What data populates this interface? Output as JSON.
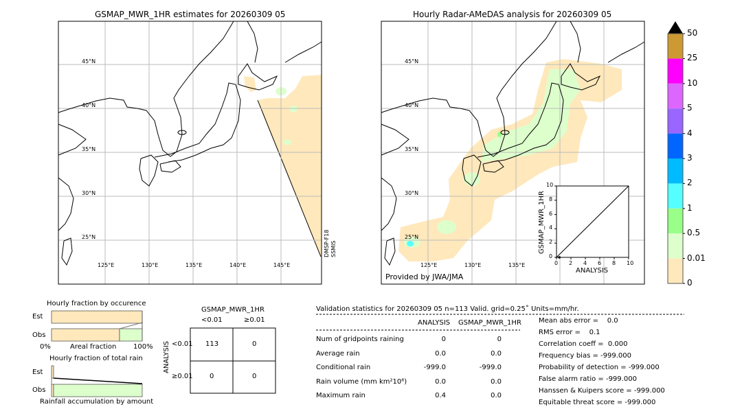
{
  "left_map": {
    "title": "GSMAP_MWR_1HR estimates for 20260309 05",
    "lat_labels": [
      "45°N",
      "40°N",
      "35°N",
      "30°N",
      "25°N"
    ],
    "lon_labels": [
      "125°E",
      "130°E",
      "135°E",
      "140°E",
      "145°E"
    ],
    "satellite_label_1": "DMSP-F18",
    "satellite_label_2": "SSMIS"
  },
  "right_map": {
    "title": "Hourly Radar-AMeDAS analysis for 20260309 05",
    "lat_labels": [
      "45°N",
      "40°N",
      "35°N",
      "30°N",
      "25°N"
    ],
    "lon_labels": [
      "125°E",
      "130°E",
      "135°E"
    ],
    "credit": "Provided by JWA/JMA"
  },
  "colorbar": {
    "labels": [
      "50",
      "25",
      "10",
      "5",
      "4",
      "3",
      "2",
      "1",
      "0.5",
      "0.01",
      "0"
    ],
    "colors": [
      "#cc9933",
      "#ff00ff",
      "#dd66ff",
      "#9966ff",
      "#0066ff",
      "#00bbff",
      "#55ffff",
      "#99ff88",
      "#ddffcc",
      "#ffe8bb"
    ],
    "extend_color": "#000000"
  },
  "chart_data": [
    {
      "type": "scatter",
      "xlabel": "ANALYSIS",
      "ylabel": "GSMAP_MWR_1HR",
      "xlim": [
        0,
        10
      ],
      "ylim": [
        0,
        10
      ],
      "x_ticks": [
        "0",
        "2",
        "4",
        "6",
        "8",
        "10"
      ],
      "y_ticks": [
        "0",
        "2",
        "4",
        "6",
        "8",
        "10"
      ],
      "points": [
        [
          0.4,
          0.0
        ]
      ],
      "reference_line": "y=x"
    },
    {
      "type": "bar",
      "title": "Hourly fraction by occurence",
      "xlabel": "Areal fraction",
      "x_tick_left": "0%",
      "x_tick_right": "100%",
      "categories": [
        "Est",
        "Obs"
      ],
      "series": [
        {
          "values": [
            1.0,
            0.75
          ],
          "color": "#ffe8bb"
        },
        {
          "values": [
            0.0,
            0.25
          ],
          "color": "#ddffcc"
        }
      ]
    },
    {
      "type": "bar",
      "title": "Hourly fraction of total rain",
      "xlabel": "Rainfall accumulation by amount",
      "categories": [
        "Est",
        "Obs"
      ],
      "series": [
        {
          "values": [
            0.02,
            0.02
          ],
          "color": "#ffe8bb"
        },
        {
          "values": [
            0.0,
            0.98
          ],
          "color": "#ddffcc"
        }
      ]
    }
  ],
  "contingency": {
    "title": "GSMAP_MWR_1HR",
    "col_headers": [
      "<0.01",
      "≥0.01"
    ],
    "row_label": "ANALYSIS",
    "row_headers": [
      "<0.01",
      "≥0.01"
    ],
    "cells": [
      [
        "113",
        "0"
      ],
      [
        "0",
        "0"
      ]
    ]
  },
  "validation": {
    "header": "Validation statistics for 20260309 05  n=113 Valid. grid=0.25˚ Units=mm/hr.",
    "col_analysis": "ANALYSIS",
    "col_gsmap": "GSMAP_MWR_1HR",
    "rows": [
      {
        "label": "Num of gridpoints raining",
        "analysis": "0",
        "gsmap": "0"
      },
      {
        "label": "Average rain",
        "analysis": "0.0",
        "gsmap": "0.0"
      },
      {
        "label": "Conditional rain",
        "analysis": "-999.0",
        "gsmap": "-999.0"
      },
      {
        "label": "Rain volume (mm km²10⁶)",
        "analysis": "0.0",
        "gsmap": "0.0"
      },
      {
        "label": "Maximum rain",
        "analysis": "0.4",
        "gsmap": "0.0"
      }
    ],
    "scores": [
      "Mean abs error =    0.0",
      "RMS error =    0.1",
      "Correlation coeff =  0.000",
      "Frequency bias = -999.000",
      "Probability of detection = -999.000",
      "False alarm ratio = -999.000",
      "Hanssen & Kuipers score = -999.000",
      "Equitable threat score = -999.000"
    ]
  }
}
